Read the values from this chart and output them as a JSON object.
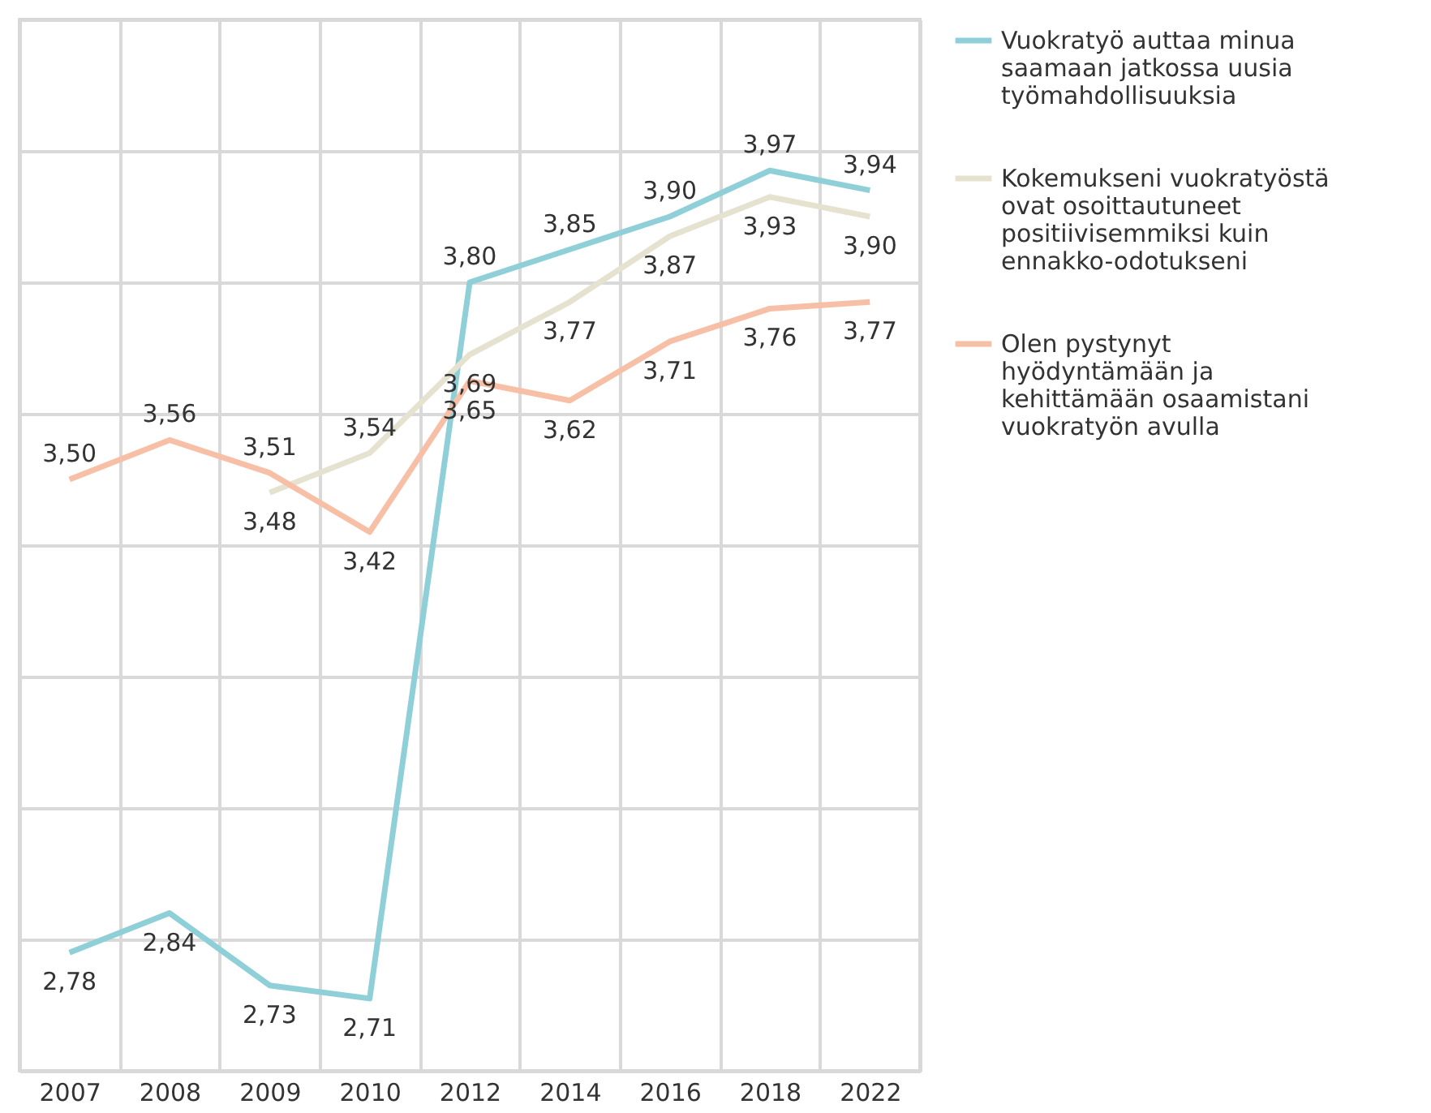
{
  "chart_data": {
    "type": "line",
    "categories": [
      "2007",
      "2008",
      "2009",
      "2010",
      "2012",
      "2014",
      "2016",
      "2018",
      "2022"
    ],
    "series": [
      {
        "name": "Vuokratyö auttaa minua saamaan jatkossa uusia työmahdollisuuksia",
        "color": "#8ecfd8",
        "values": [
          2.78,
          2.84,
          2.73,
          2.71,
          3.8,
          3.85,
          3.9,
          3.97,
          3.94
        ],
        "value_labels": [
          "2,78",
          "2,84",
          "2,73",
          "2,71",
          "3,80",
          "3,85",
          "3,90",
          "3,97",
          "3,94"
        ]
      },
      {
        "name": "Kokemukseni vuokratyöstä ovat osoittautuneet positiivisemmiksi kuin ennakko-odotukseni",
        "color": "#e6e2d0",
        "values": [
          null,
          null,
          3.48,
          3.54,
          3.69,
          3.77,
          3.87,
          3.93,
          3.9
        ],
        "value_labels": [
          null,
          null,
          "3,48",
          "3,54",
          "3,69",
          "3,77",
          "3,87",
          "3,93",
          "3,90"
        ]
      },
      {
        "name": "Olen pystynyt hyödyntämään ja kehittämään osaamistani vuokratyön avulla",
        "color": "#f7c0a6",
        "values": [
          3.5,
          3.56,
          3.51,
          3.42,
          3.65,
          3.62,
          3.71,
          3.76,
          3.77
        ],
        "value_labels": [
          "3,50",
          "3,56",
          "3,51",
          "3,42",
          "3,65",
          "3,62",
          "3,71",
          "3,76",
          "3,77"
        ]
      }
    ],
    "ylim": [
      2.6,
      4.2
    ],
    "yticks": [
      {
        "value": 2.6,
        "label": null
      },
      {
        "value": 2.8,
        "label": null
      },
      {
        "value": 3.0,
        "label": null
      },
      {
        "value": 3.2,
        "label": null
      },
      {
        "value": 3.4,
        "label": null
      },
      {
        "value": 3.6,
        "label": null
      },
      {
        "value": 3.8,
        "label": null
      },
      {
        "value": 4.0,
        "label": null
      },
      {
        "value": 4.2,
        "label": null
      }
    ],
    "tick_labels": "x",
    "grid": true,
    "legend": "right",
    "marker": "none",
    "line_style": "solid"
  }
}
